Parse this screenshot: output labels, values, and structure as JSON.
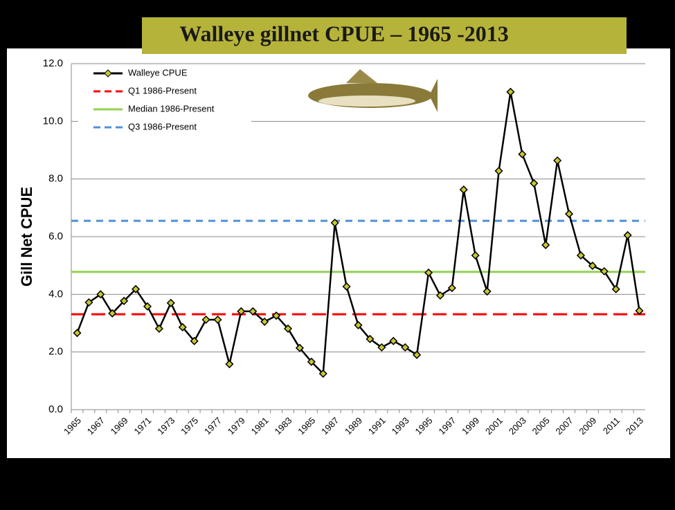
{
  "chart_data": {
    "type": "line",
    "title": "Walleye gillnet CPUE – 1965 -2013",
    "y_label": "Gill Net CPUE",
    "categories": [
      "1965",
      null,
      "1967",
      null,
      "1969",
      null,
      "1971",
      null,
      "1973",
      null,
      "1975",
      null,
      "1977",
      null,
      "1979",
      null,
      "1981",
      null,
      "1983",
      null,
      "1985",
      null,
      "1987",
      null,
      "1989",
      null,
      "1991",
      null,
      "1993",
      null,
      "1995",
      null,
      "1997",
      null,
      "1999",
      null,
      "2001",
      null,
      "2003",
      null,
      "2005",
      null,
      "2007",
      null,
      "2009",
      null,
      "2011",
      null,
      "2013"
    ],
    "series": [
      {
        "name": "Walleye CPUE",
        "color": "#000000",
        "marker_color": "#c8c832",
        "values": [
          2.66,
          3.72,
          4.0,
          3.34,
          3.77,
          4.18,
          3.58,
          2.81,
          3.7,
          2.86,
          2.38,
          3.12,
          3.12,
          1.58,
          3.41,
          3.41,
          3.05,
          3.26,
          2.81,
          2.14,
          1.66,
          1.25,
          6.48,
          4.27,
          2.93,
          2.45,
          2.16,
          2.38,
          2.16,
          1.9,
          4.75,
          3.96,
          4.22,
          7.63,
          5.35,
          4.1,
          8.28,
          11.02,
          8.86,
          7.85,
          5.71,
          8.64,
          6.79,
          5.35,
          4.99,
          4.8,
          4.18,
          6.05,
          3.43
        ]
      }
    ],
    "reference_lines": [
      {
        "name": "Q1 1986-Present",
        "color": "#ff0000",
        "dashed": true,
        "value": 3.31
      },
      {
        "name": "Median 1986-Present",
        "color": "#92d050",
        "dashed": false,
        "value": 4.78
      },
      {
        "name": "Q3 1986-Present",
        "color": "#4f8fd8",
        "dashed": true,
        "value": 6.55
      }
    ],
    "ylim": [
      0,
      12
    ],
    "yticks": [
      {
        "value": 0,
        "label": "0.0"
      },
      {
        "value": 2,
        "label": "2.0"
      },
      {
        "value": 4,
        "label": "4.0"
      },
      {
        "value": 6,
        "label": "6.0"
      },
      {
        "value": 8,
        "label": "8.0"
      },
      {
        "value": 10,
        "label": "10.0"
      },
      {
        "value": 12,
        "label": "12.0"
      }
    ],
    "grid": true,
    "legend": "upper left"
  }
}
